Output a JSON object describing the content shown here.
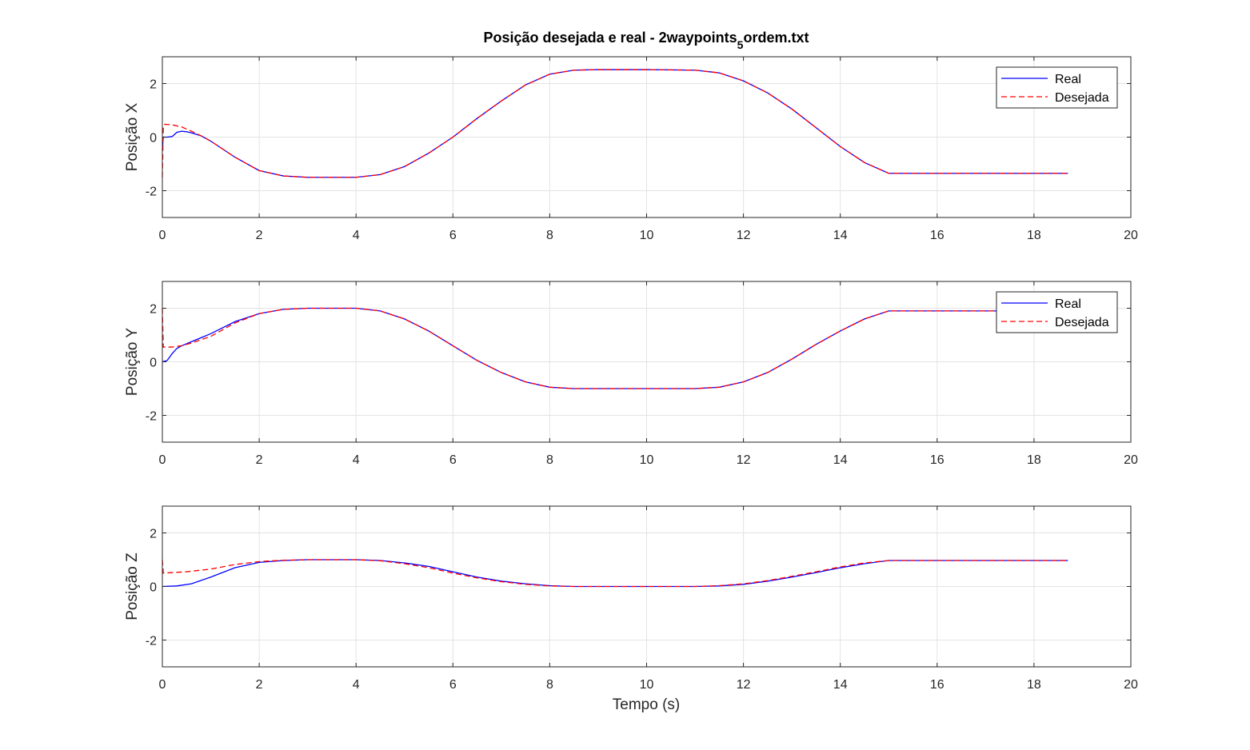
{
  "figure": {
    "title_main": "Posição desejada e real - 2waypoints",
    "title_sub": "5",
    "title_tail": "ordem.txt",
    "xlabel": "Tempo (s)"
  },
  "chart_data": [
    {
      "type": "line",
      "ylabel": "Posição X",
      "xlim": [
        0,
        20
      ],
      "ylim": [
        -3,
        3
      ],
      "xticks": [
        0,
        2,
        4,
        6,
        8,
        10,
        12,
        14,
        16,
        18,
        20
      ],
      "yticks": [
        -2,
        0,
        2
      ],
      "grid": true,
      "legend": "top-right",
      "series": [
        {
          "name": "Real",
          "color": "#0000ff",
          "dash": "solid",
          "points": [
            [
              0,
              -0.45
            ],
            [
              0.02,
              0.0
            ],
            [
              0.1,
              0.0
            ],
            [
              0.2,
              0.02
            ],
            [
              0.3,
              0.18
            ],
            [
              0.4,
              0.22
            ],
            [
              0.5,
              0.2
            ],
            [
              0.6,
              0.16
            ],
            [
              0.8,
              0.05
            ],
            [
              1.0,
              -0.15
            ],
            [
              1.5,
              -0.75
            ],
            [
              2.0,
              -1.25
            ],
            [
              2.5,
              -1.45
            ],
            [
              3.0,
              -1.5
            ],
            [
              3.5,
              -1.5
            ],
            [
              4.0,
              -1.5
            ],
            [
              4.5,
              -1.4
            ],
            [
              5.0,
              -1.1
            ],
            [
              5.5,
              -0.6
            ],
            [
              6.0,
              0.0
            ],
            [
              6.5,
              0.7
            ],
            [
              7.0,
              1.35
            ],
            [
              7.5,
              1.95
            ],
            [
              8.0,
              2.35
            ],
            [
              8.5,
              2.5
            ],
            [
              9.0,
              2.52
            ],
            [
              10.0,
              2.52
            ],
            [
              11.0,
              2.5
            ],
            [
              11.5,
              2.4
            ],
            [
              12.0,
              2.1
            ],
            [
              12.5,
              1.65
            ],
            [
              13.0,
              1.05
            ],
            [
              13.5,
              0.35
            ],
            [
              14.0,
              -0.35
            ],
            [
              14.5,
              -0.95
            ],
            [
              15.0,
              -1.35
            ],
            [
              18.7,
              -1.35
            ]
          ]
        },
        {
          "name": "Desejada",
          "color": "#ff0000",
          "dash": "dashed",
          "points": [
            [
              0,
              -1.5
            ],
            [
              0.02,
              0.4
            ],
            [
              0.05,
              0.48
            ],
            [
              0.2,
              0.46
            ],
            [
              0.4,
              0.38
            ],
            [
              0.6,
              0.22
            ],
            [
              0.8,
              0.05
            ],
            [
              1.0,
              -0.15
            ],
            [
              1.5,
              -0.75
            ],
            [
              2.0,
              -1.25
            ],
            [
              2.5,
              -1.45
            ],
            [
              3.0,
              -1.5
            ],
            [
              3.5,
              -1.5
            ],
            [
              4.0,
              -1.5
            ],
            [
              4.5,
              -1.4
            ],
            [
              5.0,
              -1.1
            ],
            [
              5.5,
              -0.6
            ],
            [
              6.0,
              0.0
            ],
            [
              6.5,
              0.7
            ],
            [
              7.0,
              1.35
            ],
            [
              7.5,
              1.95
            ],
            [
              8.0,
              2.35
            ],
            [
              8.5,
              2.5
            ],
            [
              9.0,
              2.52
            ],
            [
              10.0,
              2.52
            ],
            [
              11.0,
              2.5
            ],
            [
              11.5,
              2.4
            ],
            [
              12.0,
              2.1
            ],
            [
              12.5,
              1.65
            ],
            [
              13.0,
              1.05
            ],
            [
              13.5,
              0.35
            ],
            [
              14.0,
              -0.35
            ],
            [
              14.5,
              -0.95
            ],
            [
              15.0,
              -1.35
            ],
            [
              18.7,
              -1.35
            ]
          ]
        }
      ]
    },
    {
      "type": "line",
      "ylabel": "Posição Y",
      "xlim": [
        0,
        20
      ],
      "ylim": [
        -3,
        3
      ],
      "xticks": [
        0,
        2,
        4,
        6,
        8,
        10,
        12,
        14,
        16,
        18,
        20
      ],
      "yticks": [
        -2,
        0,
        2
      ],
      "grid": true,
      "legend": "top-right",
      "series": [
        {
          "name": "Real",
          "color": "#0000ff",
          "dash": "solid",
          "points": [
            [
              0,
              0.0
            ],
            [
              0.1,
              0.05
            ],
            [
              0.2,
              0.3
            ],
            [
              0.3,
              0.5
            ],
            [
              0.4,
              0.6
            ],
            [
              0.6,
              0.75
            ],
            [
              1.0,
              1.05
            ],
            [
              1.5,
              1.5
            ],
            [
              2.0,
              1.8
            ],
            [
              2.5,
              1.96
            ],
            [
              3.0,
              2.0
            ],
            [
              4.0,
              2.0
            ],
            [
              4.5,
              1.9
            ],
            [
              5.0,
              1.6
            ],
            [
              5.5,
              1.15
            ],
            [
              6.0,
              0.6
            ],
            [
              6.5,
              0.05
            ],
            [
              7.0,
              -0.4
            ],
            [
              7.5,
              -0.75
            ],
            [
              8.0,
              -0.95
            ],
            [
              8.5,
              -1.0
            ],
            [
              11.0,
              -1.0
            ],
            [
              11.5,
              -0.95
            ],
            [
              12.0,
              -0.75
            ],
            [
              12.5,
              -0.4
            ],
            [
              13.0,
              0.1
            ],
            [
              13.5,
              0.65
            ],
            [
              14.0,
              1.15
            ],
            [
              14.5,
              1.6
            ],
            [
              15.0,
              1.9
            ],
            [
              18.7,
              1.9
            ]
          ]
        },
        {
          "name": "Desejada",
          "color": "#ff0000",
          "dash": "dashed",
          "points": [
            [
              0,
              2.0
            ],
            [
              0.02,
              0.55
            ],
            [
              0.2,
              0.55
            ],
            [
              0.4,
              0.6
            ],
            [
              0.6,
              0.7
            ],
            [
              1.0,
              0.95
            ],
            [
              1.5,
              1.45
            ],
            [
              2.0,
              1.8
            ],
            [
              2.5,
              1.96
            ],
            [
              3.0,
              2.0
            ],
            [
              4.0,
              2.0
            ],
            [
              4.5,
              1.9
            ],
            [
              5.0,
              1.6
            ],
            [
              5.5,
              1.15
            ],
            [
              6.0,
              0.6
            ],
            [
              6.5,
              0.05
            ],
            [
              7.0,
              -0.4
            ],
            [
              7.5,
              -0.75
            ],
            [
              8.0,
              -0.95
            ],
            [
              8.5,
              -1.0
            ],
            [
              11.0,
              -1.0
            ],
            [
              11.5,
              -0.95
            ],
            [
              12.0,
              -0.75
            ],
            [
              12.5,
              -0.4
            ],
            [
              13.0,
              0.1
            ],
            [
              13.5,
              0.65
            ],
            [
              14.0,
              1.15
            ],
            [
              14.5,
              1.6
            ],
            [
              15.0,
              1.9
            ],
            [
              18.7,
              1.9
            ]
          ]
        }
      ]
    },
    {
      "type": "line",
      "ylabel": "Posição Z",
      "xlim": [
        0,
        20
      ],
      "ylim": [
        -3,
        3
      ],
      "xticks": [
        0,
        2,
        4,
        6,
        8,
        10,
        12,
        14,
        16,
        18,
        20
      ],
      "yticks": [
        -2,
        0,
        2
      ],
      "grid": true,
      "legend": "",
      "series": [
        {
          "name": "Real",
          "color": "#0000ff",
          "dash": "solid",
          "points": [
            [
              0,
              0.0
            ],
            [
              0.3,
              0.02
            ],
            [
              0.6,
              0.1
            ],
            [
              1.0,
              0.35
            ],
            [
              1.5,
              0.7
            ],
            [
              2.0,
              0.9
            ],
            [
              2.5,
              0.97
            ],
            [
              3.0,
              1.0
            ],
            [
              4.0,
              1.0
            ],
            [
              4.5,
              0.97
            ],
            [
              5.0,
              0.88
            ],
            [
              5.5,
              0.75
            ],
            [
              6.0,
              0.55
            ],
            [
              6.5,
              0.35
            ],
            [
              7.0,
              0.2
            ],
            [
              7.5,
              0.1
            ],
            [
              8.0,
              0.03
            ],
            [
              8.5,
              0.0
            ],
            [
              11.0,
              0.0
            ],
            [
              11.5,
              0.02
            ],
            [
              12.0,
              0.08
            ],
            [
              12.5,
              0.2
            ],
            [
              13.0,
              0.35
            ],
            [
              13.5,
              0.52
            ],
            [
              14.0,
              0.7
            ],
            [
              14.5,
              0.85
            ],
            [
              15.0,
              0.97
            ],
            [
              18.7,
              0.97
            ]
          ]
        },
        {
          "name": "Desejada",
          "color": "#ff0000",
          "dash": "dashed",
          "points": [
            [
              0,
              1.0
            ],
            [
              0.02,
              0.5
            ],
            [
              0.5,
              0.55
            ],
            [
              1.0,
              0.65
            ],
            [
              1.5,
              0.82
            ],
            [
              2.0,
              0.93
            ],
            [
              2.5,
              0.98
            ],
            [
              3.0,
              1.0
            ],
            [
              4.0,
              1.0
            ],
            [
              4.5,
              0.96
            ],
            [
              5.0,
              0.85
            ],
            [
              5.5,
              0.7
            ],
            [
              6.0,
              0.5
            ],
            [
              6.5,
              0.32
            ],
            [
              7.0,
              0.18
            ],
            [
              7.5,
              0.08
            ],
            [
              8.0,
              0.02
            ],
            [
              8.5,
              0.0
            ],
            [
              11.0,
              0.0
            ],
            [
              11.5,
              0.03
            ],
            [
              12.0,
              0.1
            ],
            [
              12.5,
              0.22
            ],
            [
              13.0,
              0.38
            ],
            [
              13.5,
              0.55
            ],
            [
              14.0,
              0.73
            ],
            [
              14.5,
              0.88
            ],
            [
              15.0,
              0.97
            ],
            [
              18.7,
              0.97
            ]
          ]
        }
      ]
    }
  ]
}
